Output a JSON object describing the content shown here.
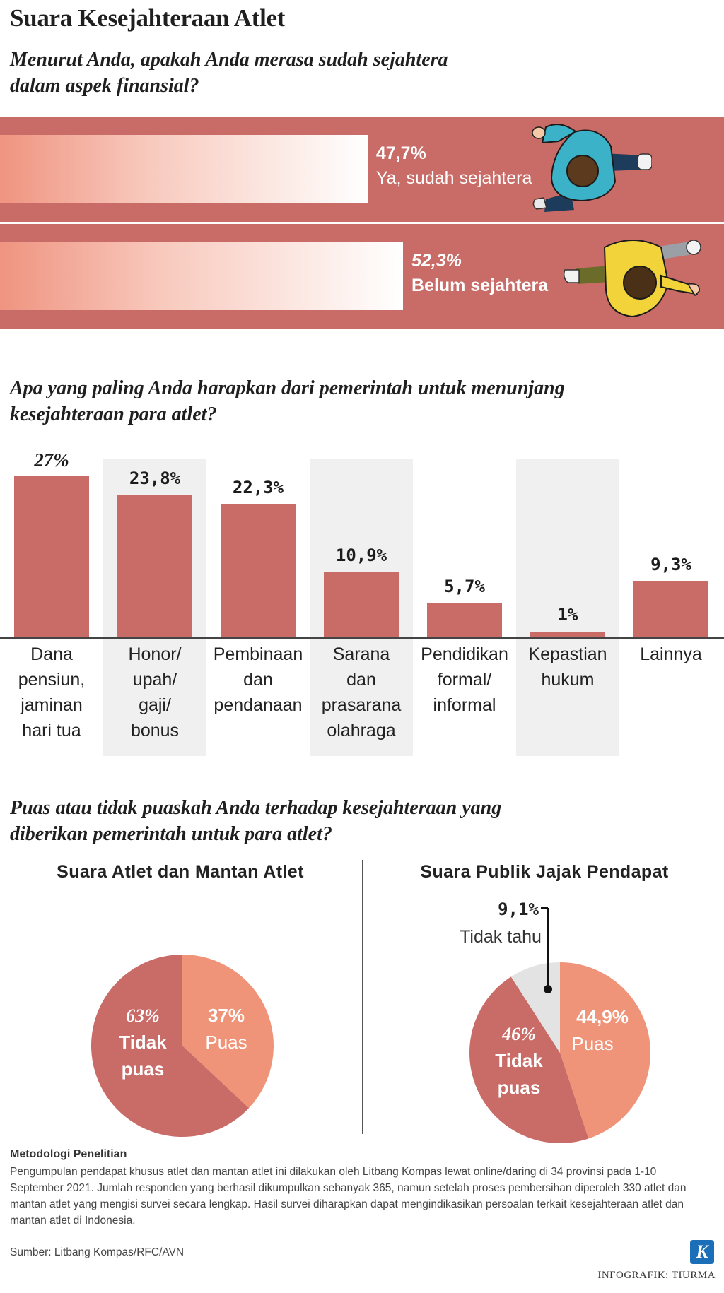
{
  "title": "Suara Kesejahteraan Atlet",
  "q1": {
    "question_line1": "Menurut Anda, apakah Anda merasa sudah sejahtera",
    "question_line2": "dalam aspek finansial?",
    "items": [
      {
        "pct": "47,7%",
        "label": "Ya, sudah sejahtera",
        "value": 47.7
      },
      {
        "pct": "52,3%",
        "label": "Belum sejahtera",
        "value": 52.3
      }
    ]
  },
  "q2": {
    "question_line1": "Apa yang paling Anda harapkan dari pemerintah untuk menunjang",
    "question_line2": "kesejahteraan para atlet?"
  },
  "q3": {
    "question_line1": "Puas atau tidak puaskah Anda terhadap kesejahteraan yang",
    "question_line2": "diberikan pemerintah untuk para atlet?",
    "left_title": "Suara Atlet dan Mantan Atlet",
    "right_title": "Suara Publik Jajak Pendapat"
  },
  "chart_data": [
    {
      "type": "bar",
      "title": "Menurut Anda, apakah Anda merasa sudah sejahtera dalam aspek finansial?",
      "categories": [
        "Ya, sudah sejahtera",
        "Belum sejahtera"
      ],
      "values": [
        47.7,
        52.3
      ],
      "value_labels": [
        "47,7%",
        "52,3%"
      ]
    },
    {
      "type": "bar",
      "title": "Apa yang paling Anda harapkan dari pemerintah untuk menunjang kesejahteraan para atlet?",
      "categories": [
        "Dana\npensiun,\njaminan\nhari tua",
        "Honor/\nupah/\ngaji/\nbonus",
        "Pembinaan\ndan\npendanaan",
        "Sarana\ndan\nprasarana\nolahraga",
        "Pendidikan\nformal/\ninformal",
        "Kepastian\nhukum",
        "Lainnya"
      ],
      "values": [
        27,
        23.8,
        22.3,
        10.9,
        5.7,
        1,
        9.3
      ],
      "value_labels": [
        "27%",
        "23,8%",
        "22,3%",
        "10,9%",
        "5,7%",
        "1%",
        "9,3%"
      ],
      "ylim": [
        0,
        27
      ],
      "colors": {
        "bar": "#c96b66",
        "alt_column_bg": "#f0f0f0"
      }
    },
    {
      "type": "pie",
      "title": "Suara Atlet dan Mantan Atlet",
      "slices": [
        {
          "label": "Puas",
          "value": 37,
          "value_label": "37%",
          "color": "#ef9478"
        },
        {
          "label": "Tidak\npuas",
          "value": 63,
          "value_label": "63%",
          "color": "#c96b66"
        }
      ]
    },
    {
      "type": "pie",
      "title": "Suara Publik Jajak Pendapat",
      "slices": [
        {
          "label": "Puas",
          "value": 44.9,
          "value_label": "44,9%",
          "color": "#ef9478"
        },
        {
          "label": "Tidak\npuas",
          "value": 46,
          "value_label": "46%",
          "color": "#c96b66"
        },
        {
          "label": "Tidak tahu",
          "value": 9.1,
          "value_label": "9,1%",
          "color": "#e3e3e3"
        }
      ]
    }
  ],
  "methodology": {
    "title": "Metodologi Penelitian",
    "body": "Pengumpulan pendapat khusus atlet dan mantan atlet ini dilakukan oleh Litbang Kompas lewat online/daring di 34 provinsi pada 1-10 September 2021. Jumlah responden yang berhasil dikumpulkan sebanyak 365, namun setelah proses pembersihan diperoleh 330 atlet dan mantan atlet yang mengisi survei secara lengkap. Hasil survei diharapkan dapat mengindikasikan persoalan terkait kesejahteraan atlet dan mantan atlet di Indonesia."
  },
  "source": "Sumber: Litbang Kompas/RFC/AVN",
  "credit": "INFOGRAFIK: TIURMA",
  "logo_letter": "K"
}
